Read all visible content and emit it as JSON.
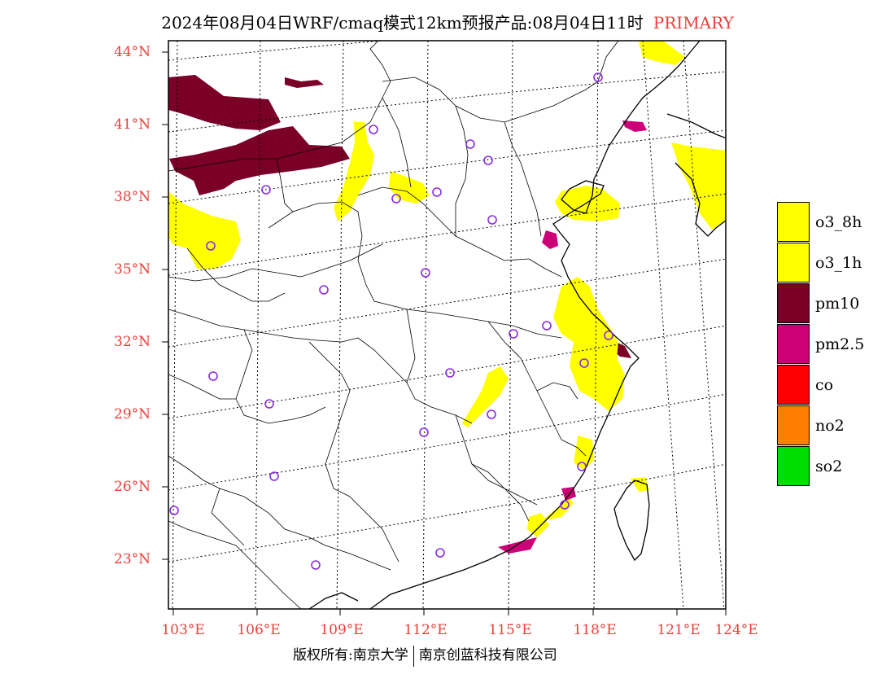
{
  "title": {
    "main": "2024年08月04日WRF/cmaq模式12km预报产品:08月04日11时",
    "tag": "PRIMARY"
  },
  "colors": {
    "o3_8h": "#ffff00",
    "o3_1h": "#ffff00",
    "pm10": "#7a0028",
    "pm2_5": "#cc0077",
    "co": "#ff0000",
    "no2": "#ff7f00",
    "so2": "#00dd00",
    "station": "#8a2be2",
    "axis_label": "#e8403a"
  },
  "latitude_labels": [
    "44°N",
    "41°N",
    "38°N",
    "35°N",
    "32°N",
    "29°N",
    "26°N",
    "23°N"
  ],
  "longitude_labels": [
    "103°E",
    "106°E",
    "109°E",
    "112°E",
    "115°E",
    "118°E",
    "121°E",
    "124°E"
  ],
  "legend": [
    {
      "label": "o3_8h",
      "color": "#ffff00"
    },
    {
      "label": "o3_1h",
      "color": "#ffff00"
    },
    {
      "label": "pm10",
      "color": "#7a0028"
    },
    {
      "label": "pm2.5",
      "color": "#cc0077"
    },
    {
      "label": "co",
      "color": "#ff0000"
    },
    {
      "label": "no2",
      "color": "#ff7f00"
    },
    {
      "label": "so2",
      "color": "#00dd00"
    }
  ],
  "copyright": {
    "left": "版权所有:南京大学",
    "right": "南京创蓝科技有限公司"
  }
}
